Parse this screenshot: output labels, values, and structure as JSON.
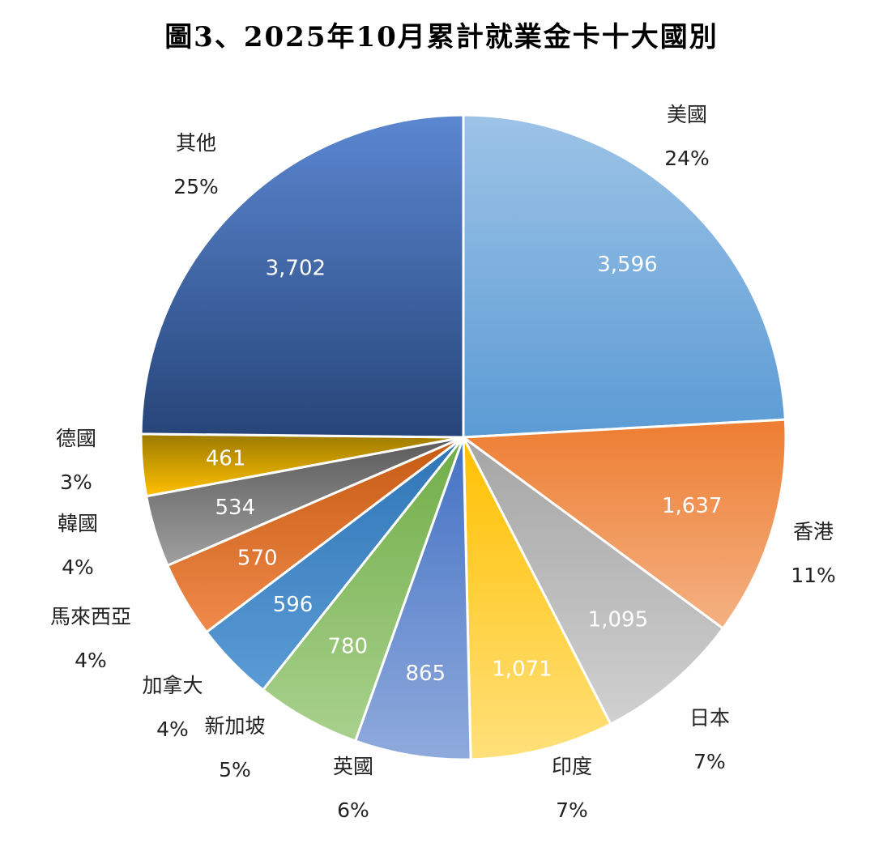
{
  "chart_data": {
    "type": "pie",
    "title": "圖3、2025年10月累計就業金卡十大國別",
    "slices": [
      {
        "name": "美國",
        "value": 3596,
        "value_label": "3,596",
        "percent_label": "24%",
        "color": "#5b9bd5",
        "color_light": "#9dc3e6"
      },
      {
        "name": "香港",
        "value": 1637,
        "value_label": "1,637",
        "percent_label": "11%",
        "color": "#ed7d31",
        "color_light": "#f4b183"
      },
      {
        "name": "日本",
        "value": 1095,
        "value_label": "1,095",
        "percent_label": "7%",
        "color": "#a5a5a5",
        "color_light": "#d0d0d0"
      },
      {
        "name": "印度",
        "value": 1071,
        "value_label": "1,071",
        "percent_label": "7%",
        "color": "#ffc000",
        "color_light": "#ffe07a"
      },
      {
        "name": "英國",
        "value": 865,
        "value_label": "865",
        "percent_label": "6%",
        "color": "#4472c4",
        "color_light": "#8faadc"
      },
      {
        "name": "新加坡",
        "value": 780,
        "value_label": "780",
        "percent_label": "5%",
        "color": "#70ad47",
        "color_light": "#a9d18e"
      },
      {
        "name": "加拿大",
        "value": 596,
        "value_label": "596",
        "percent_label": "4%",
        "color": "#2e75b6",
        "color_light": "#5b9bd5"
      },
      {
        "name": "馬來西亞",
        "value": 570,
        "value_label": "570",
        "percent_label": "4%",
        "color": "#c55a11",
        "color_light": "#f08a4b"
      },
      {
        "name": "韓國",
        "value": 534,
        "value_label": "534",
        "percent_label": "4%",
        "color": "#5a5a5a",
        "color_light": "#a0a0a0"
      },
      {
        "name": "德國",
        "value": 461,
        "value_label": "461",
        "percent_label": "3%",
        "color": "#9c7a00",
        "color_light": "#ffc000"
      },
      {
        "name": "其他",
        "value": 3702,
        "value_label": "3,702",
        "percent_label": "25%",
        "color": "#264478",
        "color_light": "#5b87d1"
      }
    ]
  }
}
